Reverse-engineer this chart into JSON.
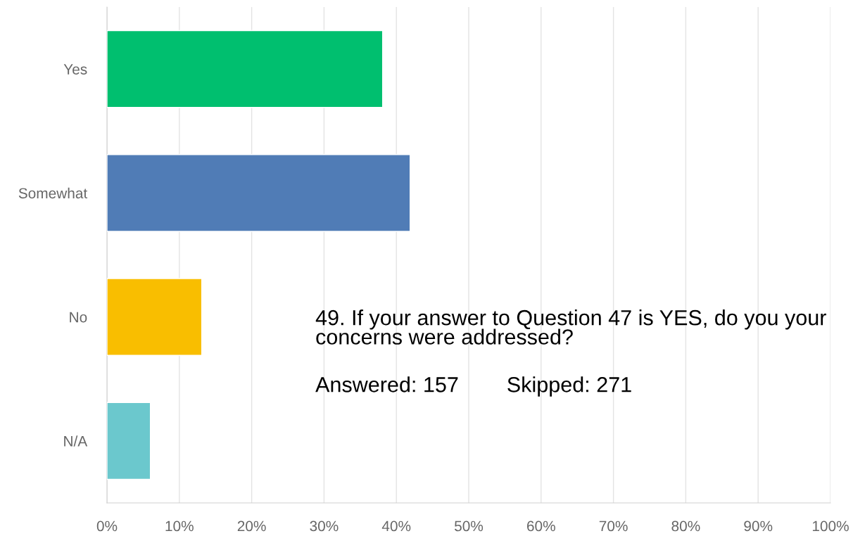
{
  "chart_data": {
    "type": "bar",
    "orientation": "horizontal",
    "categories": [
      "Yes",
      "Somewhat",
      "No",
      "N/A"
    ],
    "values": [
      38.1,
      41.9,
      13.1,
      6.0
    ],
    "colors": [
      "#00bf6f",
      "#507cb6",
      "#f9be00",
      "#6bc8cd"
    ],
    "xlim": [
      0,
      100
    ],
    "xticks": [
      {
        "value": 0,
        "label": "0%"
      },
      {
        "value": 10,
        "label": "10%"
      },
      {
        "value": 20,
        "label": "20%"
      },
      {
        "value": 30,
        "label": "30%"
      },
      {
        "value": 40,
        "label": "40%"
      },
      {
        "value": 50,
        "label": "50%"
      },
      {
        "value": 60,
        "label": "60%"
      },
      {
        "value": 70,
        "label": "70%"
      },
      {
        "value": 80,
        "label": "80%"
      },
      {
        "value": 90,
        "label": "90%"
      },
      {
        "value": 100,
        "label": "100%"
      }
    ],
    "grid": "x",
    "annotations": [
      "49. If your answer to Question 47 is YES, do you your concerns were addressed?",
      "Answered: 157        Skipped: 271"
    ]
  }
}
